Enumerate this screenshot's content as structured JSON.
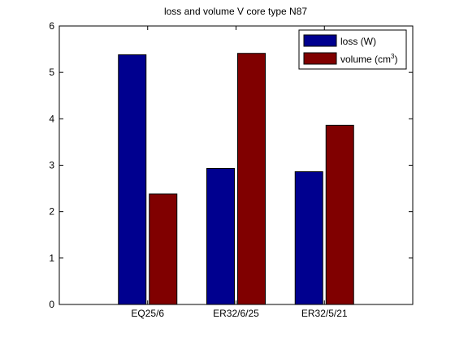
{
  "chart_data": {
    "type": "bar",
    "title": "loss and volume V core type N87",
    "xlabel": "",
    "ylabel": "",
    "categories": [
      "EQ25/6",
      "ER32/6/25",
      "ER32/5/21"
    ],
    "series": [
      {
        "name": "loss (W)",
        "color": "#00008f",
        "values": [
          5.38,
          2.93,
          2.86
        ]
      },
      {
        "name": "volume (cm3)",
        "color": "#800000",
        "values": [
          2.38,
          5.41,
          3.86
        ]
      }
    ],
    "ylim": [
      0,
      6
    ],
    "yticks": [
      0,
      1,
      2,
      3,
      4,
      5,
      6
    ],
    "grid": false,
    "legend_position": "top-right"
  },
  "legend": {
    "loss_label": "loss (W)",
    "volume_label_base": "volume (cm",
    "volume_label_sup": "3",
    "volume_label_end": ")"
  }
}
